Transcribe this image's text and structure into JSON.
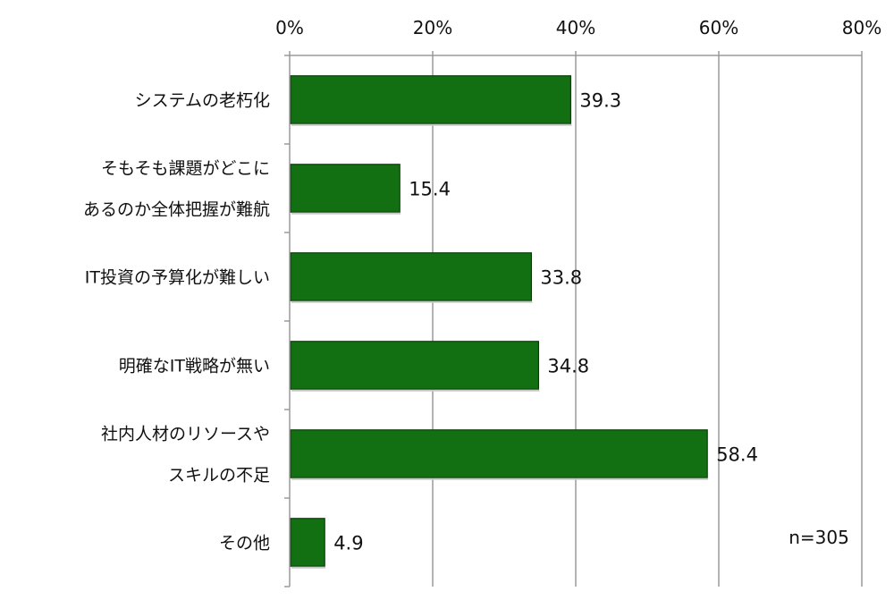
{
  "chart_data": {
    "type": "bar",
    "orientation": "horizontal",
    "categories": [
      [
        "システムの老朽化"
      ],
      [
        "そもそも課題がどこに",
        "あるのか全体把握が難航"
      ],
      [
        "IT投資の予算化が難しい"
      ],
      [
        "明確なIT戦略が無い"
      ],
      [
        "社内人材のリソースや",
        "スキルの不足"
      ],
      [
        "その他"
      ]
    ],
    "values": [
      39.3,
      15.4,
      33.8,
      34.8,
      58.4,
      4.9
    ],
    "value_labels": [
      "39.3",
      "15.4",
      "33.8",
      "34.8",
      "58.4",
      "4.9"
    ],
    "xlim": [
      0,
      80
    ],
    "x_ticks": [
      0,
      20,
      40,
      60,
      80
    ],
    "x_tick_labels": [
      "0%",
      "20%",
      "40%",
      "60%",
      "80%"
    ],
    "x_axis_position": "top",
    "grid": "vertical",
    "bar_color": "#127012",
    "bar_edge_color": "#0a3f0a",
    "annotation": "n=305"
  }
}
